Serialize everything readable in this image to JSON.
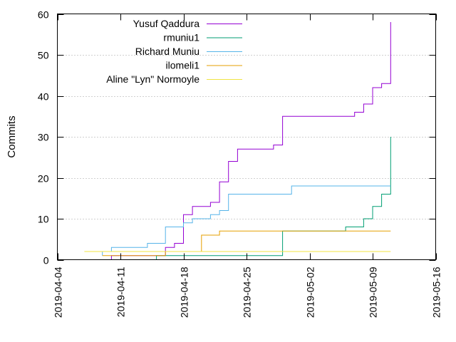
{
  "chart_data": {
    "type": "line",
    "title": "",
    "xlabel": "",
    "ylabel": "Commits",
    "xlim": [
      "2019-04-04",
      "2019-05-16"
    ],
    "ylim": [
      0,
      60
    ],
    "x_ticks": [
      "2019-04-04",
      "2019-04-11",
      "2019-04-18",
      "2019-04-25",
      "2019-05-02",
      "2019-05-09",
      "2019-05-16"
    ],
    "y_ticks": [
      0,
      10,
      20,
      30,
      40,
      50,
      60
    ],
    "grid": "horizontal dotted",
    "legend_position": "top-left",
    "series": [
      {
        "name": "Yusuf Qaddura",
        "color": "#9400d3",
        "points": [
          [
            "2019-04-09",
            0
          ],
          [
            "2019-04-10",
            1
          ],
          [
            "2019-04-15",
            1
          ],
          [
            "2019-04-16",
            3
          ],
          [
            "2019-04-17",
            4
          ],
          [
            "2019-04-18",
            4
          ],
          [
            "2019-04-18",
            11
          ],
          [
            "2019-04-19",
            13
          ],
          [
            "2019-04-20",
            13
          ],
          [
            "2019-04-21",
            14
          ],
          [
            "2019-04-22",
            15
          ],
          [
            "2019-04-22",
            19
          ],
          [
            "2019-04-23",
            24
          ],
          [
            "2019-04-24",
            25
          ],
          [
            "2019-04-24",
            27
          ],
          [
            "2019-04-28",
            28
          ],
          [
            "2019-04-29",
            29
          ],
          [
            "2019-04-29",
            32
          ],
          [
            "2019-04-29",
            35
          ],
          [
            "2019-05-06",
            35
          ],
          [
            "2019-05-07",
            36
          ],
          [
            "2019-05-08",
            37
          ],
          [
            "2019-05-08",
            38
          ],
          [
            "2019-05-09",
            38
          ],
          [
            "2019-05-09",
            42
          ],
          [
            "2019-05-10",
            42
          ],
          [
            "2019-05-10",
            43
          ],
          [
            "2019-05-11",
            44
          ],
          [
            "2019-05-11",
            58
          ]
        ]
      },
      {
        "name": "rmuniu1",
        "color": "#009e73",
        "points": [
          [
            "2019-04-14",
            0
          ],
          [
            "2019-04-15",
            1
          ],
          [
            "2019-04-29",
            1
          ],
          [
            "2019-04-29",
            7
          ],
          [
            "2019-05-03",
            7
          ],
          [
            "2019-05-06",
            8
          ],
          [
            "2019-05-08",
            8
          ],
          [
            "2019-05-08",
            10
          ],
          [
            "2019-05-09",
            12
          ],
          [
            "2019-05-09",
            13
          ],
          [
            "2019-05-10",
            15
          ],
          [
            "2019-05-10",
            16
          ],
          [
            "2019-05-11",
            16
          ],
          [
            "2019-05-11",
            20
          ],
          [
            "2019-05-11",
            26
          ],
          [
            "2019-05-11",
            30
          ]
        ]
      },
      {
        "name": "Richard Muniu",
        "color": "#56b4e9",
        "points": [
          [
            "2019-04-09",
            1
          ],
          [
            "2019-04-09",
            2
          ],
          [
            "2019-04-10",
            3
          ],
          [
            "2019-04-12",
            3
          ],
          [
            "2019-04-14",
            4
          ],
          [
            "2019-04-15",
            4
          ],
          [
            "2019-04-16",
            6
          ],
          [
            "2019-04-16",
            8
          ],
          [
            "2019-04-18",
            9
          ],
          [
            "2019-04-19",
            10
          ],
          [
            "2019-04-21",
            11
          ],
          [
            "2019-04-22",
            12
          ],
          [
            "2019-04-23",
            14
          ],
          [
            "2019-04-23",
            16
          ],
          [
            "2019-04-29",
            16
          ],
          [
            "2019-04-30",
            17
          ],
          [
            "2019-04-30",
            18
          ],
          [
            "2019-05-11",
            18
          ]
        ]
      },
      {
        "name": "ilomeli1",
        "color": "#e69f00",
        "points": [
          [
            "2019-04-09",
            1
          ],
          [
            "2019-04-15",
            1
          ],
          [
            "2019-04-16",
            2
          ],
          [
            "2019-04-19",
            2
          ],
          [
            "2019-04-20",
            3
          ],
          [
            "2019-04-20",
            6
          ],
          [
            "2019-04-21",
            6
          ],
          [
            "2019-04-22",
            7
          ],
          [
            "2019-05-11",
            7
          ]
        ]
      },
      {
        "name": "Aline \"Lyn\" Normoyle",
        "color": "#f0e442",
        "points": [
          [
            "2019-04-07",
            2
          ],
          [
            "2019-05-11",
            2
          ]
        ]
      }
    ]
  }
}
